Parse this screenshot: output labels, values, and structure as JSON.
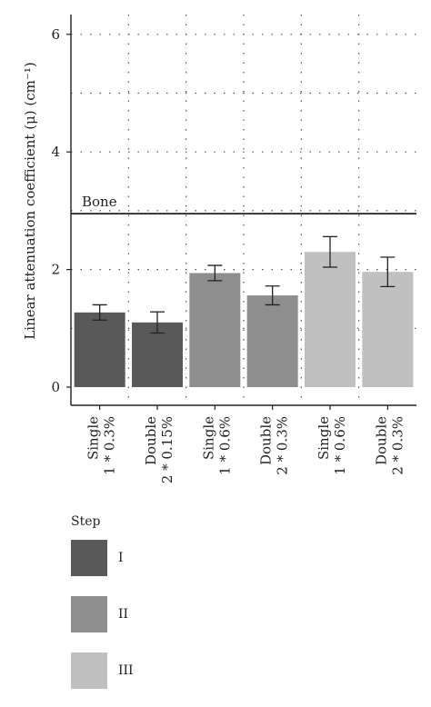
{
  "chart_data": {
    "type": "bar",
    "title": "",
    "ylabel": "Linear attenuation coefficient (μ) (cm⁻¹)",
    "xlabel": "",
    "ylim": [
      0,
      6.3
    ],
    "yticks": [
      0,
      2,
      4,
      6
    ],
    "grid": true,
    "categories": [
      [
        "Single",
        "1 * 0.3%"
      ],
      [
        "Double",
        "2 * 0.15%"
      ],
      [
        "Single",
        "1 * 0.6%"
      ],
      [
        "Double",
        "2 * 0.3%"
      ],
      [
        "Single",
        "1 * 0.6%"
      ],
      [
        "Double",
        "2 * 0.3%"
      ]
    ],
    "values": [
      1.27,
      1.1,
      1.94,
      1.56,
      2.3,
      1.96
    ],
    "errors": [
      0.13,
      0.18,
      0.13,
      0.16,
      0.26,
      0.25
    ],
    "groups": [
      "I",
      "I",
      "II",
      "II",
      "III",
      "III"
    ],
    "reference_line": {
      "label": "Bone",
      "value": 2.95
    },
    "legend": {
      "title": "Step",
      "position": "bottom-left",
      "entries": [
        {
          "label": "I",
          "color": "#595959"
        },
        {
          "label": "II",
          "color": "#8e8e8e"
        },
        {
          "label": "III",
          "color": "#c0c0c0"
        }
      ]
    }
  }
}
